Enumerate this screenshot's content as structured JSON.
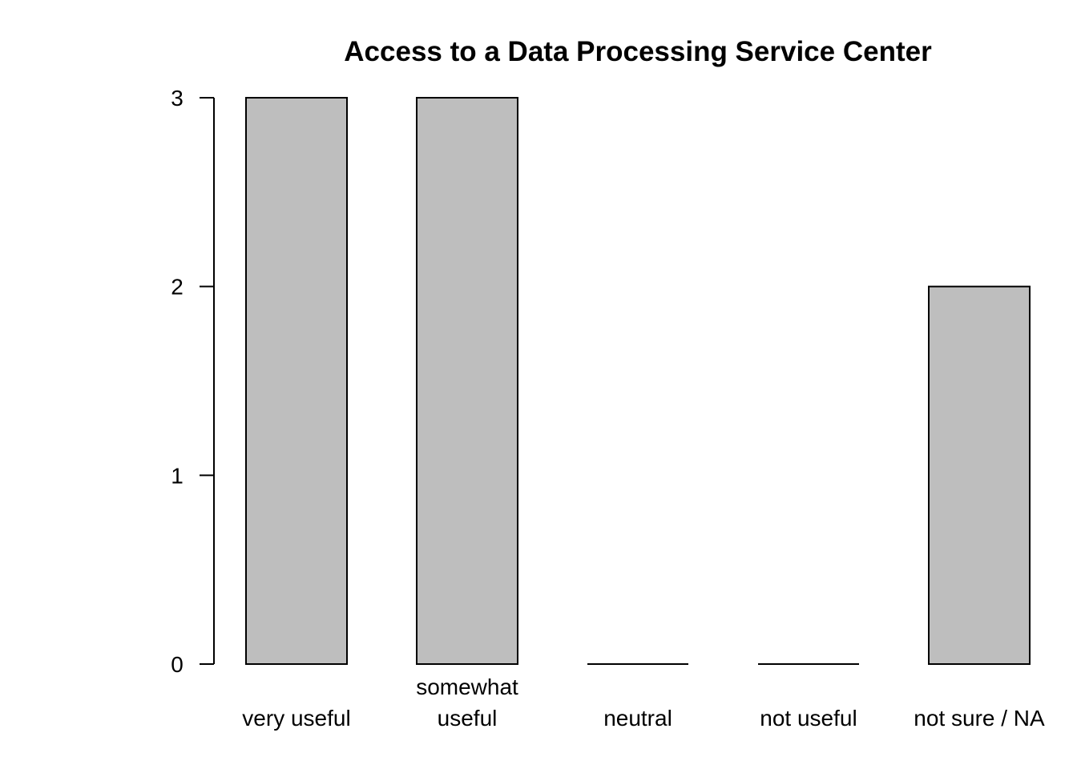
{
  "chart_data": {
    "type": "bar",
    "title": "Access to a Data Processing Service Center",
    "xlabel": "",
    "ylabel": "",
    "categories": [
      [
        "very useful"
      ],
      [
        "somewhat",
        "useful"
      ],
      [
        "neutral"
      ],
      [
        "not useful"
      ],
      [
        "not sure / NA"
      ]
    ],
    "values": [
      3,
      3,
      0,
      0,
      2
    ],
    "ylim": [
      0,
      3
    ],
    "yticks": [
      0,
      1,
      2,
      3
    ],
    "grid": false,
    "legend": "none",
    "colors": {
      "bar_fill": "#bebebe",
      "bar_stroke": "#000000",
      "axis": "#000000",
      "background": "#ffffff"
    }
  }
}
